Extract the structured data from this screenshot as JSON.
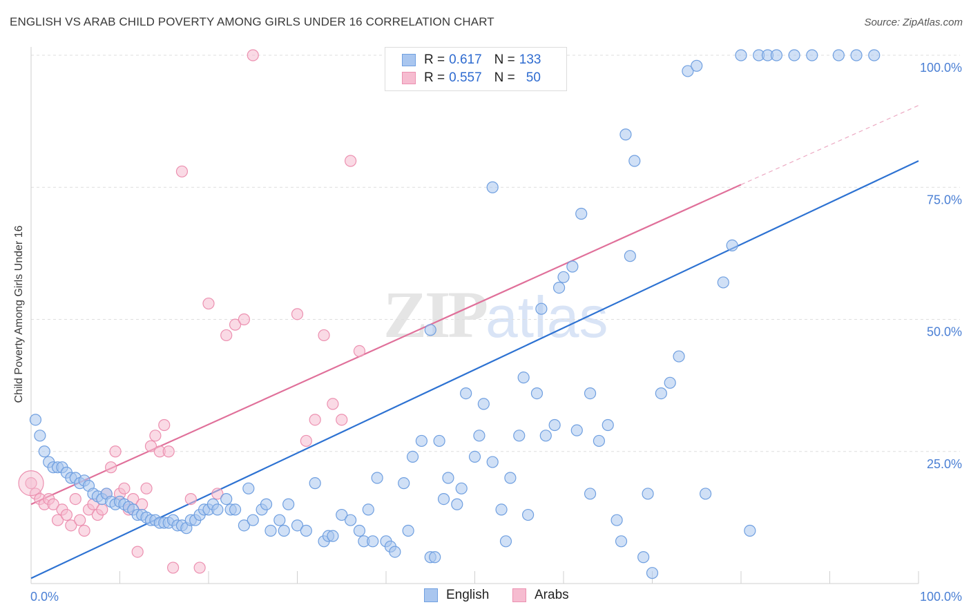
{
  "title": "ENGLISH VS ARAB CHILD POVERTY AMONG GIRLS UNDER 16 CORRELATION CHART",
  "source": "Source: ZipAtlas.com",
  "watermark": {
    "zip": "ZIP",
    "atlas": "atlas"
  },
  "legend": {
    "english": {
      "r_label": "R =",
      "r_value": "0.617",
      "n_label": "N =",
      "n_value": "133"
    },
    "arabs": {
      "r_label": "R =",
      "r_value": "0.557",
      "n_label": "N =",
      "n_value": "50"
    }
  },
  "bottom_legend": {
    "english": "English",
    "arabs": "Arabs"
  },
  "colors": {
    "english_fill": "#a9c6ef",
    "english_stroke": "#6f9fe0",
    "english_line": "#2d72d2",
    "arabs_fill": "#f6bcd0",
    "arabs_stroke": "#ec90b0",
    "arabs_line": "#e0709a",
    "tick_text": "#4a7fd4",
    "grid": "#dedede"
  },
  "chart_data": {
    "type": "scatter",
    "title": "ENGLISH VS ARAB CHILD POVERTY AMONG GIRLS UNDER 16 CORRELATION CHART",
    "xlabel": "",
    "ylabel": "Child Poverty Among Girls Under 16",
    "xlim": [
      0,
      100
    ],
    "ylim": [
      0,
      100
    ],
    "x_tick_labels": [
      "0.0%",
      "100.0%"
    ],
    "y_tick_labels": [
      {
        "value": 25,
        "label": "25.0%"
      },
      {
        "value": 50,
        "label": "50.0%"
      },
      {
        "value": 75,
        "label": "75.0%"
      },
      {
        "value": 100,
        "label": "100.0%"
      }
    ],
    "grid": true,
    "legend_position": "top-center",
    "series": [
      {
        "name": "English",
        "r": 0.617,
        "n": 133,
        "trend": {
          "x": [
            0,
            100
          ],
          "y": [
            1,
            80
          ]
        },
        "points": [
          [
            0.5,
            31
          ],
          [
            1,
            28
          ],
          [
            1.5,
            25
          ],
          [
            2,
            23
          ],
          [
            2.5,
            22
          ],
          [
            3,
            22
          ],
          [
            3.5,
            22
          ],
          [
            4,
            21
          ],
          [
            4.5,
            20
          ],
          [
            5,
            20
          ],
          [
            5.5,
            19
          ],
          [
            6,
            19.5
          ],
          [
            6.5,
            18.5
          ],
          [
            7,
            17
          ],
          [
            7.5,
            16.5
          ],
          [
            8,
            16
          ],
          [
            8.5,
            17
          ],
          [
            9,
            15.5
          ],
          [
            9.5,
            15
          ],
          [
            10,
            15.5
          ],
          [
            10.5,
            15
          ],
          [
            11,
            14.5
          ],
          [
            11.5,
            14
          ],
          [
            12,
            13
          ],
          [
            12.5,
            13
          ],
          [
            13,
            12.5
          ],
          [
            13.5,
            12
          ],
          [
            14,
            12
          ],
          [
            14.5,
            11.5
          ],
          [
            15,
            11.5
          ],
          [
            15.5,
            11.5
          ],
          [
            16,
            12
          ],
          [
            16.5,
            11
          ],
          [
            17,
            11
          ],
          [
            17.5,
            10.5
          ],
          [
            18,
            12
          ],
          [
            18.5,
            12
          ],
          [
            19,
            13
          ],
          [
            19.5,
            14
          ],
          [
            20,
            14
          ],
          [
            20.5,
            15
          ],
          [
            21,
            14
          ],
          [
            22,
            16
          ],
          [
            22.5,
            14
          ],
          [
            23,
            14
          ],
          [
            24,
            11
          ],
          [
            24.5,
            18
          ],
          [
            25,
            12
          ],
          [
            26,
            14
          ],
          [
            26.5,
            15
          ],
          [
            27,
            10
          ],
          [
            28,
            12
          ],
          [
            28.5,
            10
          ],
          [
            29,
            15
          ],
          [
            30,
            11
          ],
          [
            31,
            10
          ],
          [
            32,
            19
          ],
          [
            33,
            8
          ],
          [
            33.5,
            9
          ],
          [
            34,
            9
          ],
          [
            35,
            13
          ],
          [
            36,
            12
          ],
          [
            37,
            10
          ],
          [
            37.5,
            8
          ],
          [
            38,
            14
          ],
          [
            38.5,
            8
          ],
          [
            39,
            20
          ],
          [
            40,
            8
          ],
          [
            40.5,
            7
          ],
          [
            41,
            6
          ],
          [
            42,
            19
          ],
          [
            42.5,
            10
          ],
          [
            43,
            24
          ],
          [
            44,
            27
          ],
          [
            45,
            5
          ],
          [
            45.5,
            5
          ],
          [
            46,
            27
          ],
          [
            46.5,
            16
          ],
          [
            47,
            20
          ],
          [
            48,
            15
          ],
          [
            48.5,
            18
          ],
          [
            49,
            36
          ],
          [
            50,
            24
          ],
          [
            50.5,
            28
          ],
          [
            51,
            34
          ],
          [
            52,
            23
          ],
          [
            53,
            14
          ],
          [
            53.5,
            8
          ],
          [
            54,
            20
          ],
          [
            55,
            28
          ],
          [
            55.5,
            39
          ],
          [
            56,
            13
          ],
          [
            57,
            36
          ],
          [
            57.5,
            52
          ],
          [
            58,
            28
          ],
          [
            59,
            30
          ],
          [
            59.5,
            56
          ],
          [
            60,
            58
          ],
          [
            61,
            60
          ],
          [
            61.5,
            29
          ],
          [
            62,
            70
          ],
          [
            63,
            36
          ],
          [
            64,
            27
          ],
          [
            65,
            30
          ],
          [
            66,
            12
          ],
          [
            66.5,
            8
          ],
          [
            67,
            85
          ],
          [
            67.5,
            62
          ],
          [
            68,
            80
          ],
          [
            69,
            5
          ],
          [
            69.5,
            17
          ],
          [
            70,
            2
          ],
          [
            71,
            36
          ],
          [
            72,
            38
          ],
          [
            73,
            43
          ],
          [
            74,
            97
          ],
          [
            75,
            98
          ],
          [
            76,
            17
          ],
          [
            78,
            57
          ],
          [
            79,
            64
          ],
          [
            80,
            100
          ],
          [
            81,
            10
          ],
          [
            82,
            100
          ],
          [
            83,
            100
          ],
          [
            84,
            100
          ],
          [
            86,
            100
          ],
          [
            88,
            100
          ],
          [
            91,
            100
          ],
          [
            93,
            100
          ],
          [
            95,
            100
          ],
          [
            45,
            48
          ],
          [
            52,
            75
          ],
          [
            63,
            17
          ]
        ]
      },
      {
        "name": "Arabs",
        "r": 0.557,
        "n": 50,
        "trend": {
          "x": [
            0,
            80
          ],
          "y": [
            15,
            75.5
          ]
        },
        "trend_dashed_to": {
          "x": 100,
          "y": 90.5
        },
        "points": [
          [
            0,
            19
          ],
          [
            0.5,
            17
          ],
          [
            1,
            16
          ],
          [
            1.5,
            15
          ],
          [
            2,
            16
          ],
          [
            2.5,
            15
          ],
          [
            3,
            12
          ],
          [
            3.5,
            14
          ],
          [
            4,
            13
          ],
          [
            4.5,
            11
          ],
          [
            5,
            16
          ],
          [
            5.5,
            12
          ],
          [
            6,
            10
          ],
          [
            6.5,
            14
          ],
          [
            7,
            15
          ],
          [
            7.5,
            13
          ],
          [
            8,
            14
          ],
          [
            8.5,
            17
          ],
          [
            9,
            22
          ],
          [
            9.5,
            25
          ],
          [
            10,
            17
          ],
          [
            10.5,
            18
          ],
          [
            11,
            14
          ],
          [
            11.5,
            16
          ],
          [
            12,
            6
          ],
          [
            12.5,
            15
          ],
          [
            13,
            18
          ],
          [
            13.5,
            26
          ],
          [
            14,
            28
          ],
          [
            14.5,
            25
          ],
          [
            15,
            30
          ],
          [
            15.5,
            25
          ],
          [
            16,
            3
          ],
          [
            17,
            78
          ],
          [
            18,
            16
          ],
          [
            19,
            3
          ],
          [
            20,
            53
          ],
          [
            21,
            17
          ],
          [
            22,
            47
          ],
          [
            23,
            49
          ],
          [
            24,
            50
          ],
          [
            25,
            100
          ],
          [
            30,
            51
          ],
          [
            31,
            27
          ],
          [
            32,
            31
          ],
          [
            33,
            47
          ],
          [
            34,
            34
          ],
          [
            35,
            31
          ],
          [
            36,
            80
          ],
          [
            37,
            44
          ]
        ]
      }
    ]
  }
}
